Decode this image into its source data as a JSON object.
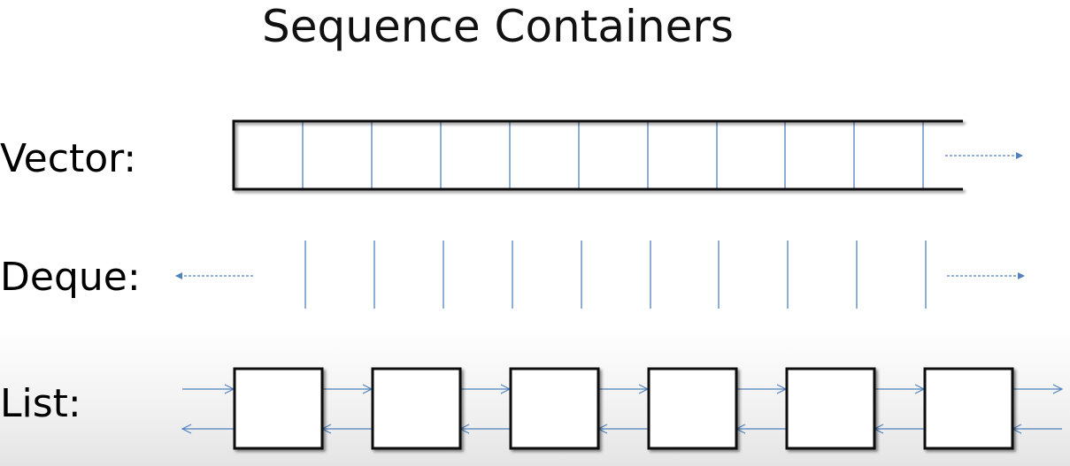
{
  "title": "Sequence Containers",
  "containers": [
    {
      "label": "Vector:"
    },
    {
      "label": "Deque:"
    },
    {
      "label": "List:"
    }
  ],
  "colors": {
    "frame": "#111111",
    "link": "#4f81bd",
    "shadow": "#9a9a9a"
  }
}
